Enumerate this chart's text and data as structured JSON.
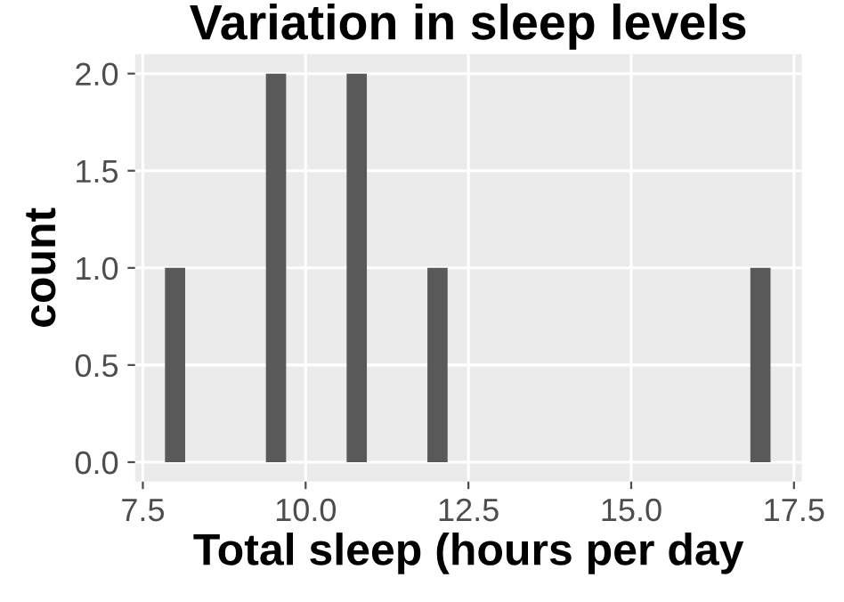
{
  "chart_data": {
    "type": "histogram",
    "title": "Variation in sleep levels",
    "xlabel": "Total sleep (hours per day",
    "ylabel": "count",
    "bins": [
      7.84,
      8.15,
      8.46,
      8.77,
      9.08,
      9.39,
      9.7,
      10.01,
      10.32,
      10.63,
      10.94,
      11.25,
      11.56,
      11.87,
      12.18,
      12.49,
      12.8,
      13.11,
      13.42,
      13.73,
      14.04,
      14.35,
      14.66,
      14.97,
      15.28,
      15.59,
      15.9,
      16.21,
      16.52,
      16.83,
      17.14
    ],
    "values": [
      1,
      0,
      0,
      0,
      0,
      2,
      0,
      0,
      0,
      2,
      0,
      0,
      0,
      1,
      0,
      0,
      0,
      0,
      0,
      0,
      0,
      0,
      0,
      0,
      0,
      0,
      0,
      0,
      0,
      1
    ],
    "color": "#595959",
    "xlim": [
      7.38,
      17.62
    ],
    "ylim": [
      -0.1,
      2.1
    ],
    "xticks": [
      {
        "value": 7.5,
        "label": "7.5"
      },
      {
        "value": 10,
        "label": "10.0"
      },
      {
        "value": 12.5,
        "label": "12.5"
      },
      {
        "value": 15,
        "label": "15.0"
      },
      {
        "value": 17.5,
        "label": "17.5"
      }
    ],
    "yticks": [
      {
        "value": 0,
        "label": "0.0"
      },
      {
        "value": 0.5,
        "label": "0.5"
      },
      {
        "value": 1,
        "label": "1.0"
      },
      {
        "value": 1.5,
        "label": "1.5"
      },
      {
        "value": 2,
        "label": "2.0"
      }
    ],
    "grid": true
  }
}
